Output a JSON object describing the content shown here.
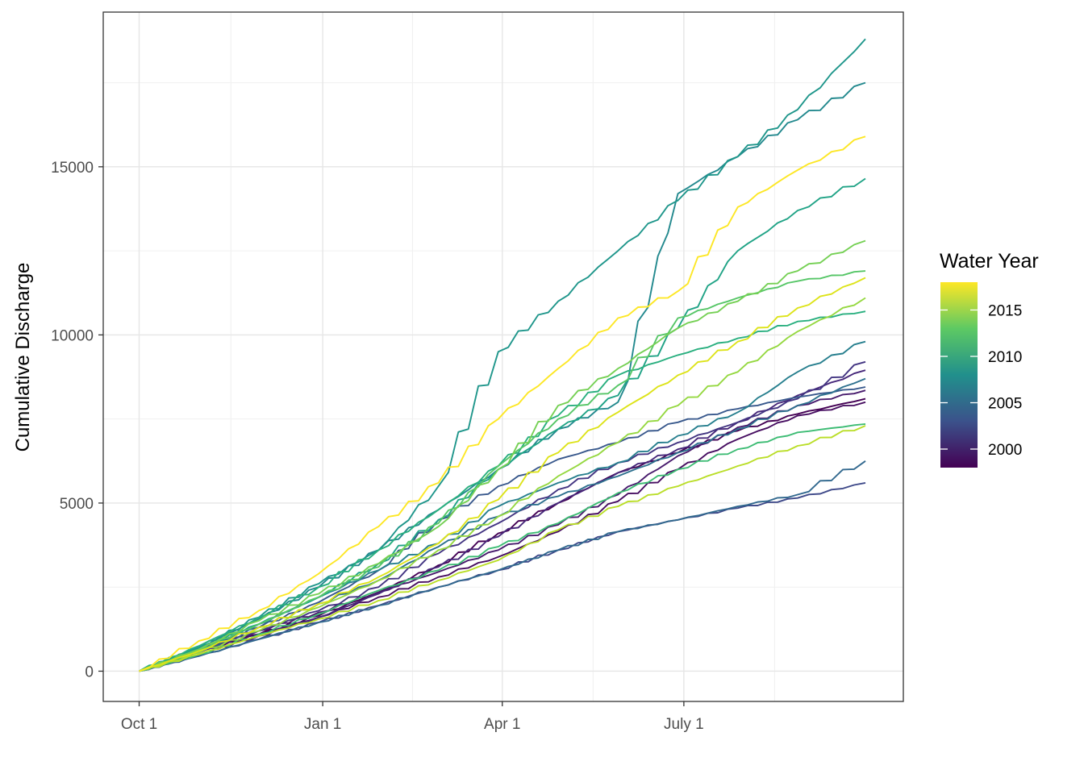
{
  "chart_data": {
    "type": "line",
    "title": "",
    "xlabel": "",
    "ylabel": "Cumulative Discharge",
    "grid": true,
    "legend_position": "right",
    "x_ticks": [
      {
        "day": 0,
        "label": "Oct 1"
      },
      {
        "day": 92,
        "label": "Jan 1"
      },
      {
        "day": 182,
        "label": "Apr 1"
      },
      {
        "day": 273,
        "label": "July 1"
      }
    ],
    "xlim": [
      -18,
      383
    ],
    "y_ticks": [
      0,
      5000,
      10000,
      15000
    ],
    "ylim": [
      -900,
      19600
    ],
    "legend": {
      "title": "Water Year",
      "min_year": 1998,
      "max_year": 2018,
      "labels": [
        2000,
        2005,
        2010,
        2015
      ],
      "gradient_colors": [
        "#440154",
        "#3b528b",
        "#21908c",
        "#5dc963",
        "#fde725"
      ]
    },
    "series_x_days": [
      0,
      30,
      60,
      90,
      120,
      150,
      180,
      210,
      240,
      270,
      300,
      330,
      364
    ],
    "series": [
      {
        "year": 1998,
        "color": "#440154",
        "values": [
          0,
          600,
          1100,
          1650,
          2350,
          3150,
          4100,
          5000,
          5900,
          6500,
          7150,
          7650,
          8100
        ]
      },
      {
        "year": 1999,
        "color": "#470e61",
        "values": [
          0,
          550,
          1100,
          1600,
          2200,
          2800,
          3400,
          4150,
          5050,
          6000,
          6900,
          7600,
          8000
        ]
      },
      {
        "year": 2000,
        "color": "#481b6d",
        "values": [
          0,
          600,
          1200,
          1750,
          2350,
          2950,
          3600,
          4350,
          5250,
          6400,
          7250,
          7900,
          8350
        ]
      },
      {
        "year": 2001,
        "color": "#46277a",
        "values": [
          0,
          500,
          1050,
          1600,
          2300,
          3100,
          4000,
          5000,
          5900,
          6600,
          7400,
          8200,
          8950
        ]
      },
      {
        "year": 2002,
        "color": "#433582",
        "values": [
          0,
          600,
          1200,
          1800,
          2500,
          3500,
          4400,
          5400,
          6200,
          6800,
          7400,
          8100,
          9200
        ]
      },
      {
        "year": 2003,
        "color": "#3e4989",
        "values": [
          0,
          450,
          950,
          1450,
          1950,
          2500,
          3000,
          3600,
          4150,
          4500,
          4850,
          5150,
          5600
        ]
      },
      {
        "year": 2004,
        "color": "#38588c",
        "values": [
          0,
          600,
          1300,
          2050,
          3000,
          4500,
          5500,
          6300,
          6800,
          7400,
          7800,
          8150,
          8450
        ]
      },
      {
        "year": 2005,
        "color": "#31688e",
        "values": [
          0,
          450,
          950,
          1450,
          1950,
          2500,
          3000,
          3600,
          4150,
          4500,
          4900,
          5250,
          6250
        ]
      },
      {
        "year": 2006,
        "color": "#2d708e",
        "values": [
          0,
          650,
          1300,
          2000,
          2700,
          3700,
          4600,
          5200,
          5800,
          6500,
          7200,
          7900,
          8700
        ]
      },
      {
        "year": 2007,
        "color": "#277f8e",
        "values": [
          0,
          650,
          1400,
          2200,
          3000,
          3800,
          4900,
          5600,
          6200,
          7000,
          7700,
          8900,
          9800
        ]
      },
      {
        "year": 2008,
        "color": "#23898e",
        "values": [
          0,
          700,
          1550,
          2500,
          3600,
          4800,
          6000,
          7200,
          8000,
          14200,
          15300,
          16400,
          17500
        ]
      },
      {
        "year": 2009,
        "color": "#1f968b",
        "values": [
          0,
          700,
          1600,
          2600,
          3600,
          5500,
          9500,
          11000,
          12500,
          14000,
          15300,
          16700,
          18800
        ]
      },
      {
        "year": 2010,
        "color": "#20a386",
        "values": [
          0,
          650,
          1400,
          2200,
          3200,
          4500,
          6000,
          7200,
          8200,
          10200,
          12500,
          13700,
          14650
        ]
      },
      {
        "year": 2011,
        "color": "#29af7f",
        "values": [
          0,
          750,
          1600,
          2500,
          3600,
          4800,
          6100,
          7600,
          8800,
          9400,
          9900,
          10400,
          10700
        ]
      },
      {
        "year": 2012,
        "color": "#3dbc74",
        "values": [
          0,
          500,
          1100,
          1700,
          2400,
          3000,
          3700,
          4400,
          5300,
          6000,
          6600,
          7100,
          7350
        ]
      },
      {
        "year": 2013,
        "color": "#56c667",
        "values": [
          0,
          650,
          1400,
          2200,
          3100,
          4400,
          6100,
          7500,
          8500,
          10500,
          11100,
          11600,
          11900
        ]
      },
      {
        "year": 2014,
        "color": "#75d054",
        "values": [
          0,
          650,
          1500,
          2300,
          3200,
          4300,
          6000,
          7900,
          9000,
          10200,
          11000,
          11900,
          12800
        ]
      },
      {
        "year": 2015,
        "color": "#95d840",
        "values": [
          0,
          550,
          1200,
          1900,
          2700,
          3600,
          4600,
          5800,
          6800,
          7900,
          8900,
          10100,
          11100
        ]
      },
      {
        "year": 2016,
        "color": "#bade28",
        "values": [
          0,
          500,
          1050,
          1550,
          2100,
          2700,
          3300,
          4200,
          4900,
          5500,
          6100,
          6700,
          7300
        ]
      },
      {
        "year": 2017,
        "color": "#dde318",
        "values": [
          0,
          600,
          1300,
          2000,
          2800,
          3800,
          5100,
          6500,
          7700,
          8800,
          9800,
          10800,
          11700
        ]
      },
      {
        "year": 2018,
        "color": "#fde725",
        "values": [
          0,
          900,
          1800,
          2900,
          4300,
          5600,
          7500,
          9000,
          10500,
          11300,
          13800,
          14900,
          15900
        ]
      }
    ]
  }
}
